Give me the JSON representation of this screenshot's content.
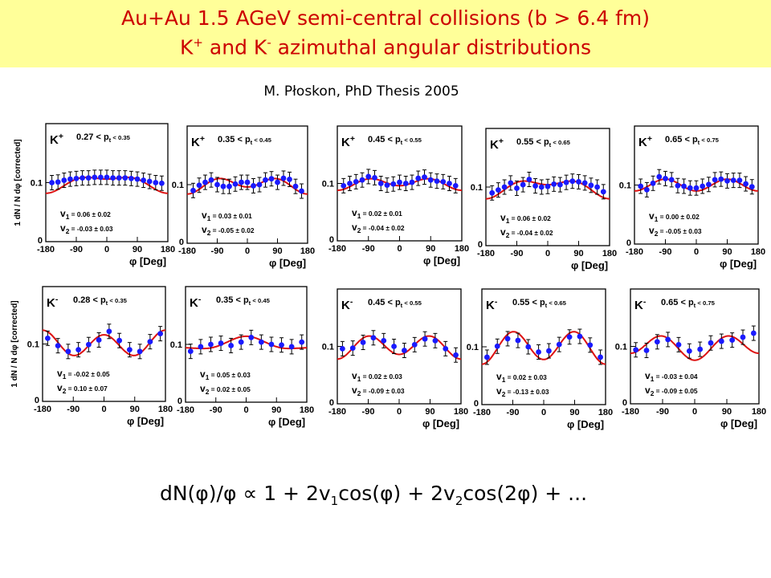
{
  "header": {
    "title_line1": "Au+Au 1.5 AGeV semi-central collisions (b > 6.4 fm)",
    "title_line2_prefix": "K",
    "title_line2_plus": "+",
    "title_line2_mid": " and K",
    "title_line2_minus": "-",
    "title_line2_suffix": " azimuthal angular distributions",
    "credit": "M. Płoskon, PhD Thesis 2005",
    "band_color": "#ffff99",
    "title_color": "#cc0000"
  },
  "formula": {
    "p1": "dN(φ)/φ ∝ 1 + 2v",
    "s1": "1",
    "p2": "cos(φ) + 2v",
    "s2": "2",
    "p3": "cos(2φ) + ..."
  },
  "colors": {
    "points": "#1a1aff",
    "fit": "#dd1111",
    "axis": "#000000"
  },
  "chart_data": [
    {
      "type": "scatter",
      "particle": "K",
      "charge": "+",
      "pt_label": "0.27 < p",
      "pt_sub": "t",
      "pt_range": "< 0.35",
      "v1_label": "v",
      "v1_sub": "1",
      "v1_value": "= 0.06 ± 0.02",
      "v2_label": "v",
      "v2_sub": "2",
      "v2_value": "= -0.03 ± 0.03",
      "v1": 0.06,
      "v2": -0.03,
      "ylabel": "1 dN / N dφ [corrected]",
      "ytick": "0.1",
      "yzero": "0",
      "xticks": [
        "-180",
        "-90",
        "0",
        "90",
        "180"
      ],
      "xlabel": "φ [Deg]",
      "ylim": [
        0,
        0.2
      ],
      "xlim": [
        -180,
        180
      ],
      "x": [
        -162,
        -144,
        -126,
        -108,
        -90,
        -72,
        -54,
        -36,
        -18,
        0,
        18,
        36,
        54,
        72,
        90,
        108,
        126,
        144,
        162
      ],
      "y": [
        0.1,
        0.101,
        0.104,
        0.106,
        0.107,
        0.108,
        0.108,
        0.109,
        0.109,
        0.109,
        0.108,
        0.108,
        0.108,
        0.107,
        0.106,
        0.104,
        0.102,
        0.1,
        0.099
      ]
    },
    {
      "type": "scatter",
      "particle": "K",
      "charge": "+",
      "pt_label": "0.35 < p",
      "pt_sub": "t",
      "pt_range": "< 0.45",
      "v1_label": "v",
      "v1_sub": "1",
      "v1_value": "= 0.03 ± 0.01",
      "v2_label": "v",
      "v2_sub": "2",
      "v2_value": "= -0.05 ± 0.02",
      "v1": 0.03,
      "v2": -0.05,
      "ylabel": "",
      "ytick": "0.1",
      "yzero": "0",
      "xticks": [
        "-180",
        "-90",
        "0",
        "90",
        "180"
      ],
      "xlabel": "φ [Deg]",
      "ylim": [
        0,
        0.2
      ],
      "xlim": [
        -180,
        180
      ],
      "x": [
        -162,
        -144,
        -126,
        -108,
        -90,
        -72,
        -54,
        -36,
        -18,
        0,
        18,
        36,
        54,
        72,
        90,
        108,
        126,
        144,
        162
      ],
      "y": [
        0.09,
        0.099,
        0.104,
        0.108,
        0.1,
        0.097,
        0.097,
        0.101,
        0.104,
        0.104,
        0.098,
        0.1,
        0.108,
        0.11,
        0.104,
        0.111,
        0.109,
        0.097,
        0.089
      ]
    },
    {
      "type": "scatter",
      "particle": "K",
      "charge": "+",
      "pt_label": "0.45 < p",
      "pt_sub": "t",
      "pt_range": "< 0.55",
      "v1_label": "v",
      "v1_sub": "1",
      "v1_value": "= 0.02 ± 0.01",
      "v2_label": "v",
      "v2_sub": "2",
      "v2_value": "= -0.04 ± 0.02",
      "v1": 0.02,
      "v2": -0.04,
      "ylabel": "",
      "ytick": "0.1",
      "yzero": "0",
      "xticks": [
        "-180",
        "-90",
        "0",
        "90",
        "180"
      ],
      "xlabel": "φ [Deg]",
      "ylim": [
        0,
        0.2
      ],
      "xlim": [
        -180,
        180
      ],
      "x": [
        -162,
        -144,
        -126,
        -108,
        -90,
        -72,
        -54,
        -36,
        -18,
        0,
        18,
        36,
        54,
        72,
        90,
        108,
        126,
        144,
        162
      ],
      "y": [
        0.096,
        0.1,
        0.103,
        0.106,
        0.112,
        0.11,
        0.1,
        0.097,
        0.099,
        0.102,
        0.1,
        0.102,
        0.109,
        0.111,
        0.106,
        0.104,
        0.103,
        0.1,
        0.096
      ]
    },
    {
      "type": "scatter",
      "particle": "K",
      "charge": "+",
      "pt_label": "0.55 < p",
      "pt_sub": "t",
      "pt_range": "< 0.65",
      "v1_label": "v",
      "v1_sub": "1",
      "v1_value": "= 0.06 ± 0.02",
      "v2_label": "v",
      "v2_sub": "2",
      "v2_value": "= -0.04 ± 0.02",
      "v1": 0.06,
      "v2": -0.04,
      "ylabel": "",
      "ytick": "0.1",
      "yzero": "0",
      "xticks": [
        "-180",
        "-90",
        "0",
        "90",
        "180"
      ],
      "xlabel": "φ [Deg]",
      "ylim": [
        0,
        0.2
      ],
      "xlim": [
        -180,
        180
      ],
      "x": [
        -162,
        -144,
        -126,
        -108,
        -90,
        -72,
        -54,
        -36,
        -18,
        0,
        18,
        36,
        54,
        72,
        90,
        108,
        126,
        144,
        162
      ],
      "y": [
        0.09,
        0.095,
        0.1,
        0.107,
        0.098,
        0.104,
        0.113,
        0.102,
        0.1,
        0.101,
        0.105,
        0.104,
        0.108,
        0.11,
        0.109,
        0.107,
        0.103,
        0.1,
        0.092
      ]
    },
    {
      "type": "scatter",
      "particle": "K",
      "charge": "+",
      "pt_label": "0.65 < p",
      "pt_sub": "t",
      "pt_range": "< 0.75",
      "v1_label": "v",
      "v1_sub": "1",
      "v1_value": "= 0.00 ± 0.02",
      "v2_label": "v",
      "v2_sub": "2",
      "v2_value": "= -0.05 ± 0.03",
      "v1": 0.0,
      "v2": -0.05,
      "ylabel": "",
      "ytick": "0.1",
      "yzero": "0",
      "xticks": [
        "-180",
        "-90",
        "0",
        "90",
        "180"
      ],
      "xlabel": "φ [Deg]",
      "ylim": [
        0,
        0.2
      ],
      "xlim": [
        -180,
        180
      ],
      "x": [
        -162,
        -144,
        -126,
        -108,
        -90,
        -72,
        -54,
        -36,
        -18,
        0,
        18,
        36,
        54,
        72,
        90,
        108,
        126,
        144,
        162
      ],
      "y": [
        0.098,
        0.092,
        0.103,
        0.114,
        0.111,
        0.109,
        0.099,
        0.098,
        0.095,
        0.095,
        0.098,
        0.101,
        0.109,
        0.11,
        0.107,
        0.108,
        0.108,
        0.102,
        0.097
      ]
    },
    {
      "type": "scatter",
      "particle": "K",
      "charge": "-",
      "pt_label": "0.28 < p",
      "pt_sub": "t",
      "pt_range": "< 0.35",
      "v1_label": "v",
      "v1_sub": "1",
      "v1_value": "= -0.02 ± 0.05",
      "v2_label": "v",
      "v2_sub": "2",
      "v2_value": "= 0.10 ± 0.07",
      "v1": -0.02,
      "v2": 0.1,
      "ylabel": "1 dN / N dφ [corrected]",
      "ytick": "0.1",
      "yzero": "0",
      "xticks": [
        "-180",
        "-90",
        "0",
        "90",
        "180"
      ],
      "xlabel": "φ [Deg]",
      "ylim": [
        0,
        0.2
      ],
      "xlim": [
        -180,
        180
      ],
      "x": [
        -165,
        -135,
        -105,
        -75,
        -45,
        -15,
        15,
        45,
        75,
        105,
        135,
        165
      ],
      "y": [
        0.11,
        0.097,
        0.087,
        0.09,
        0.099,
        0.107,
        0.122,
        0.106,
        0.09,
        0.087,
        0.104,
        0.118
      ]
    },
    {
      "type": "scatter",
      "particle": "K",
      "charge": "-",
      "pt_label": "0.35 < p",
      "pt_sub": "t",
      "pt_range": "< 0.45",
      "v1_label": "v",
      "v1_sub": "1",
      "v1_value": "= 0.05 ± 0.03",
      "v2_label": "v",
      "v2_sub": "2",
      "v2_value": "= 0.02 ± 0.05",
      "v1": 0.05,
      "v2": 0.02,
      "ylabel": "",
      "ytick": "0.1",
      "yzero": "0",
      "xticks": [
        "-180",
        "-90",
        "0",
        "90",
        "180"
      ],
      "xlabel": "φ [Deg]",
      "ylim": [
        0,
        0.2
      ],
      "xlim": [
        -180,
        180
      ],
      "x": [
        -165,
        -135,
        -105,
        -75,
        -45,
        -15,
        15,
        45,
        75,
        105,
        135,
        165
      ],
      "y": [
        0.088,
        0.096,
        0.1,
        0.102,
        0.098,
        0.104,
        0.112,
        0.104,
        0.1,
        0.099,
        0.096,
        0.104
      ]
    },
    {
      "type": "scatter",
      "particle": "K",
      "charge": "-",
      "pt_label": "0.45 < p",
      "pt_sub": "t",
      "pt_range": "< 0.55",
      "v1_label": "v",
      "v1_sub": "1",
      "v1_value": "= 0.02 ± 0.03",
      "v2_label": "v",
      "v2_sub": "2",
      "v2_value": "= -0.09 ± 0.03",
      "v1": 0.02,
      "v2": -0.09,
      "ylabel": "",
      "ytick": "0.1",
      "yzero": "0",
      "xticks": [
        "-180",
        "-90",
        "0",
        "90",
        "180"
      ],
      "xlabel": "φ [Deg]",
      "ylim": [
        0,
        0.2
      ],
      "xlim": [
        -180,
        180
      ],
      "x": [
        -165,
        -135,
        -105,
        -75,
        -45,
        -15,
        15,
        45,
        75,
        105,
        135,
        165
      ],
      "y": [
        0.096,
        0.097,
        0.107,
        0.115,
        0.11,
        0.1,
        0.093,
        0.103,
        0.113,
        0.11,
        0.096,
        0.085
      ]
    },
    {
      "type": "scatter",
      "particle": "K",
      "charge": "-",
      "pt_label": "0.55 < p",
      "pt_sub": "t",
      "pt_range": "< 0.65",
      "v1_label": "v",
      "v1_sub": "1",
      "v1_value": "= 0.02 ± 0.03",
      "v2_label": "v",
      "v2_sub": "2",
      "v2_value": "= -0.13 ± 0.03",
      "v1": 0.02,
      "v2": -0.13,
      "ylabel": "",
      "ytick": "0.1",
      "yzero": "0",
      "xticks": [
        "-180",
        "-90",
        "0",
        "90",
        "180"
      ],
      "xlabel": "φ [Deg]",
      "ylim": [
        0,
        0.2
      ],
      "xlim": [
        -180,
        180
      ],
      "x": [
        -165,
        -135,
        -105,
        -75,
        -45,
        -15,
        15,
        45,
        75,
        105,
        135,
        165
      ],
      "y": [
        0.082,
        0.101,
        0.114,
        0.111,
        0.1,
        0.091,
        0.093,
        0.104,
        0.117,
        0.118,
        0.103,
        0.082
      ]
    },
    {
      "type": "scatter",
      "particle": "K",
      "charge": "-",
      "pt_label": "0.65 < p",
      "pt_sub": "t",
      "pt_range": "< 0.75",
      "v1_label": "v",
      "v1_sub": "1",
      "v1_value": "= -0.03 ± 0.04",
      "v2_label": "v",
      "v2_sub": "2",
      "v2_value": "= -0.09 ± 0.05",
      "v1": -0.03,
      "v2": -0.09,
      "ylabel": "",
      "ytick": "0.1",
      "yzero": "0",
      "xticks": [
        "-180",
        "-90",
        "0",
        "90",
        "180"
      ],
      "xlabel": "φ [Deg]",
      "ylim": [
        0,
        0.2
      ],
      "xlim": [
        -180,
        180
      ],
      "x": [
        -165,
        -135,
        -105,
        -75,
        -45,
        -15,
        15,
        45,
        75,
        105,
        135,
        165
      ],
      "y": [
        0.094,
        0.093,
        0.108,
        0.112,
        0.103,
        0.092,
        0.095,
        0.106,
        0.109,
        0.111,
        0.116,
        0.123
      ]
    }
  ]
}
